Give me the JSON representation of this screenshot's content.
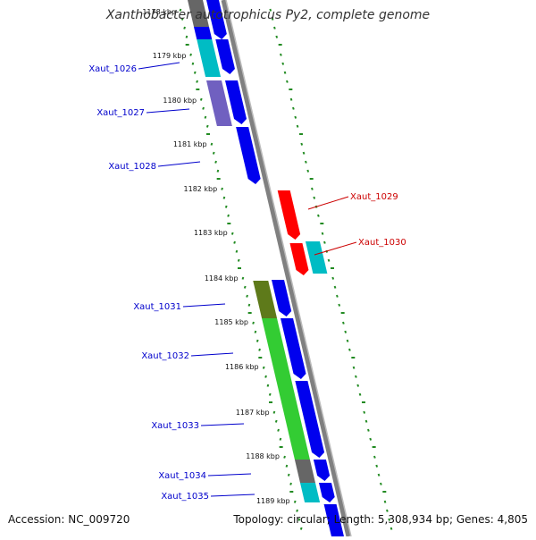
{
  "title": "Xanthobacter autotrophicus Py2, complete genome",
  "accession": "Accession: NC_009720",
  "summary": "Topology: circular; Length: 5,308,934 bp; Genes: 4,805",
  "colors": {
    "forward_cds": "#0000ee",
    "reverse_cds": "#ff0000",
    "backbone": "#808080",
    "tick_dots": "#228b22",
    "label_forward": "#0000cc",
    "label_reverse": "#cc0000"
  },
  "scale_labels": [
    "1178 kbp",
    "1179 kbp",
    "1180 kbp",
    "1181 kbp",
    "1182 kbp",
    "1183 kbp",
    "1184 kbp",
    "1185 kbp",
    "1186 kbp",
    "1187 kbp",
    "1188 kbp",
    "1189 kbp"
  ],
  "genes": [
    {
      "name": "Xaut_1026",
      "strand": "forward"
    },
    {
      "name": "Xaut_1027",
      "strand": "forward"
    },
    {
      "name": "Xaut_1028",
      "strand": "forward"
    },
    {
      "name": "Xaut_1029",
      "strand": "reverse"
    },
    {
      "name": "Xaut_1030",
      "strand": "reverse"
    },
    {
      "name": "Xaut_1031",
      "strand": "forward"
    },
    {
      "name": "Xaut_1032",
      "strand": "forward"
    },
    {
      "name": "Xaut_1033",
      "strand": "forward"
    },
    {
      "name": "Xaut_1034",
      "strand": "forward"
    },
    {
      "name": "Xaut_1035",
      "strand": "forward"
    }
  ]
}
